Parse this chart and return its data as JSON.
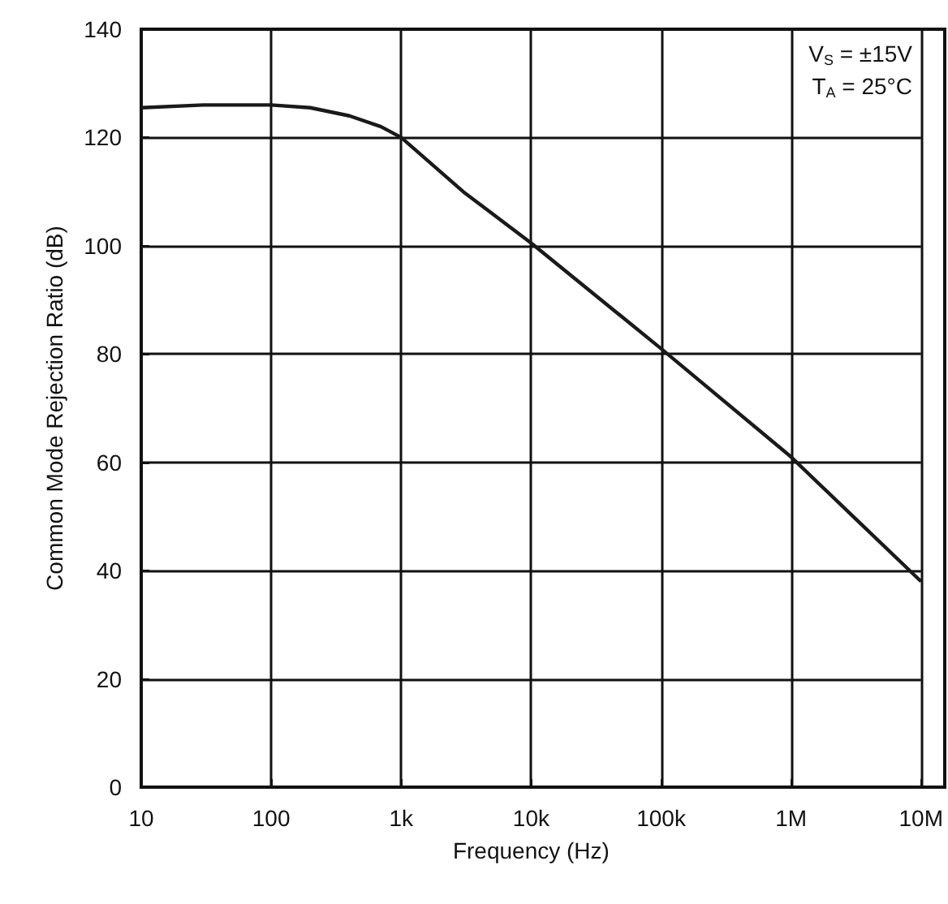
{
  "chart_data": {
    "type": "line",
    "xlabel": "Frequency (Hz)",
    "ylabel": "Common Mode Rejection Ratio (dB)",
    "x": [
      10,
      30,
      100,
      200,
      400,
      700,
      1000,
      3000,
      10000,
      100000,
      1000000,
      3000000,
      10000000
    ],
    "series": [
      {
        "color": "#1a1a1a",
        "values": [
          125.5,
          126,
          126,
          125.5,
          124,
          122,
          120,
          110,
          100.5,
          81,
          61,
          50,
          38
        ]
      }
    ],
    "log": "x",
    "xlim": [
      10,
      10000000
    ],
    "xticks": [
      10,
      100,
      {
        "value": 1000,
        "label": "1k"
      },
      {
        "value": 10000,
        "label": "10k"
      },
      {
        "value": 100000,
        "label": "100k"
      },
      {
        "value": 1000000,
        "label": "1M"
      },
      {
        "value": 10000000,
        "label": "10M"
      }
    ],
    "ylim": [
      0,
      140
    ],
    "yticks": [
      0,
      20,
      40,
      60,
      80,
      100,
      120,
      140
    ],
    "grid": true,
    "marker": "none",
    "line_style": "solid",
    "annotations": [
      "V$_{S}$ = ±15V",
      "T$_{A}$ = 25°C"
    ]
  }
}
